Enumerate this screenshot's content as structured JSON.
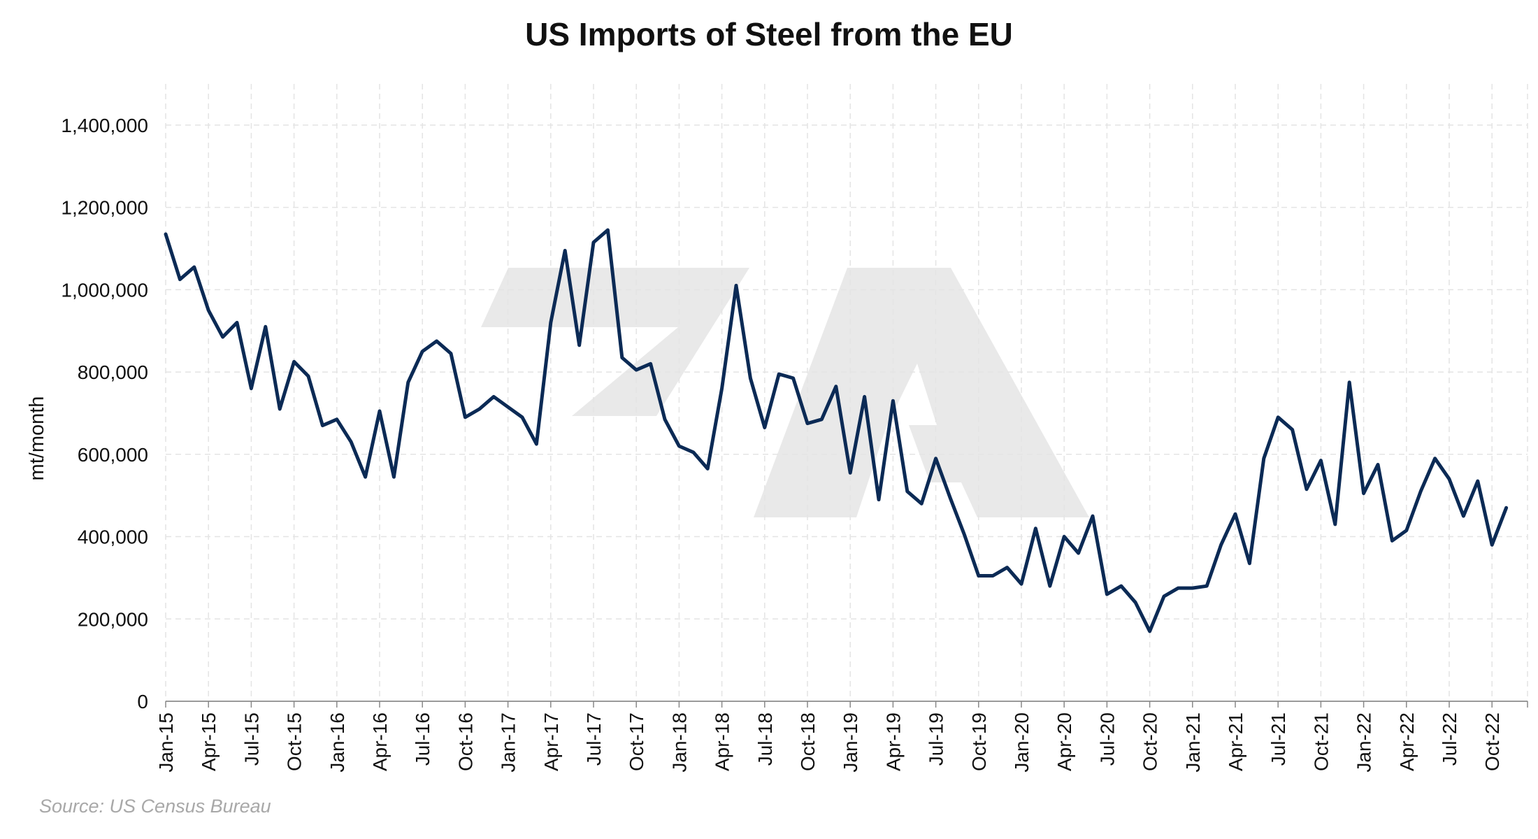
{
  "chart_data": {
    "type": "line",
    "title": "US Imports of Steel from the EU",
    "ylabel": "mt/month",
    "xlabel": "",
    "source": "Source: US Census Bureau",
    "ylim": [
      0,
      1500000
    ],
    "yticks": [
      0,
      200000,
      400000,
      600000,
      800000,
      1000000,
      1200000,
      1400000
    ],
    "ytick_labels": [
      "0",
      "200,000",
      "400,000",
      "600,000",
      "800,000",
      "1,000,000",
      "1,200,000",
      "1,400,000"
    ],
    "xtick_labels": [
      "Jan-15",
      "Apr-15",
      "Jul-15",
      "Oct-15",
      "Jan-16",
      "Apr-16",
      "Jul-16",
      "Oct-16",
      "Jan-17",
      "Apr-17",
      "Jul-17",
      "Oct-17",
      "Jan-18",
      "Apr-18",
      "Jul-18",
      "Oct-18",
      "Jan-19",
      "Apr-19",
      "Jul-19",
      "Oct-19",
      "Jan-20",
      "Apr-20",
      "Jul-20",
      "Oct-20",
      "Jan-21",
      "Apr-21",
      "Jul-21",
      "Oct-21",
      "Jan-22",
      "Apr-22",
      "Jul-22",
      "Oct-22"
    ],
    "grid": true,
    "line_color": "#0b2a55",
    "x_start": "2015-01",
    "series": [
      {
        "values": [
          1135000,
          1025000,
          1055000,
          950000,
          885000,
          920000,
          760000,
          910000,
          710000,
          825000,
          790000,
          670000,
          685000,
          630000,
          545000,
          705000,
          545000,
          775000,
          850000,
          875000,
          845000,
          690000,
          710000,
          740000,
          715000,
          690000,
          625000,
          920000,
          1095000,
          865000,
          1115000,
          1145000,
          835000,
          805000,
          820000,
          685000,
          620000,
          605000,
          565000,
          760000,
          1010000,
          785000,
          665000,
          795000,
          785000,
          675000,
          685000,
          765000,
          555000,
          740000,
          490000,
          730000,
          510000,
          480000,
          590000,
          495000,
          405000,
          305000,
          305000,
          325000,
          285000,
          420000,
          280000,
          400000,
          360000,
          450000,
          260000,
          280000,
          240000,
          170000,
          255000,
          275000,
          275000,
          280000,
          380000,
          455000,
          335000,
          590000,
          690000,
          660000,
          515000,
          585000,
          430000,
          775000,
          505000,
          575000,
          390000,
          415000,
          510000,
          590000,
          540000,
          450000,
          535000,
          380000,
          470000
        ]
      }
    ]
  },
  "watermark": "logo-mark"
}
